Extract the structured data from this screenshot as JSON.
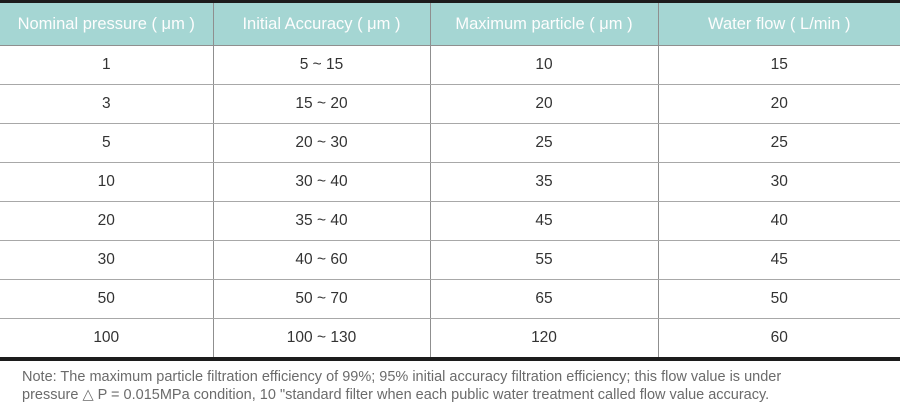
{
  "table": {
    "columns": [
      "Nominal pressure ( μm )",
      "Initial Accuracy ( μm )",
      "Maximum particle ( μm )",
      "Water flow ( L/min )"
    ],
    "rows": [
      [
        "1",
        "5 ~ 15",
        "10",
        "15"
      ],
      [
        "3",
        "15 ~ 20",
        "20",
        "20"
      ],
      [
        "5",
        "20 ~ 30",
        "25",
        "25"
      ],
      [
        "10",
        "30 ~ 40",
        "35",
        "30"
      ],
      [
        "20",
        "35 ~ 40",
        "45",
        "40"
      ],
      [
        "30",
        "40 ~ 60",
        "55",
        "45"
      ],
      [
        "50",
        "50 ~ 70",
        "65",
        "50"
      ],
      [
        "100",
        "100 ~ 130",
        "120",
        "60"
      ]
    ]
  },
  "note": {
    "lines": [
      "Note: The maximum particle filtration efficiency of 99%; 95% initial accuracy filtration efficiency; this flow value is under",
      "pressure △ P = 0.015MPa condition, 10 \"standard filter when each public water treatment called flow value accuracy."
    ]
  },
  "colors": {
    "header_bg": "#a5d6d3",
    "header_text": "#fdfdfd",
    "body_text": "#333333",
    "grid_line": "#8f8f8f",
    "row_line": "#a8a8a8",
    "border_dark": "#1c1c1c",
    "note_text": "#6b6b6b"
  }
}
